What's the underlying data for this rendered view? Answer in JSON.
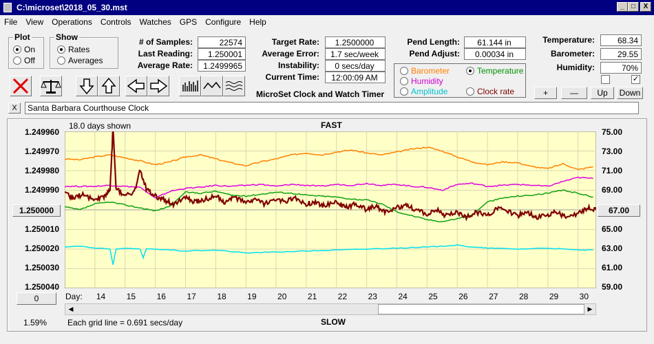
{
  "window": {
    "title": "C:\\microset\\2018_05_30.mst",
    "minimize": "_",
    "maximize": "□",
    "close": "X"
  },
  "menu": [
    "File",
    "View",
    "Operations",
    "Controls",
    "Watches",
    "GPS",
    "Configure",
    "Help"
  ],
  "plot_group": {
    "title": "Plot",
    "on_label": "On",
    "off_label": "Off",
    "selected": "On"
  },
  "show_group": {
    "title": "Show",
    "rates_label": "Rates",
    "averages_label": "Averages",
    "selected": "Rates"
  },
  "stats": {
    "samples_label": "# of Samples:",
    "samples": "22574",
    "last_reading_label": "Last Reading:",
    "last_reading": "1.250001",
    "average_rate_label": "Average Rate:",
    "average_rate": "1.2499965",
    "target_rate_label": "Target Rate:",
    "target_rate": "1.2500000",
    "average_error_label": "Average Error:",
    "average_error": "1.7 sec/week",
    "instability_label": "Instability:",
    "instability": "0 secs/day",
    "current_time_label": "Current Time:",
    "current_time": "12:00:09 AM",
    "pend_length_label": "Pend Length:",
    "pend_length": "61.144 in",
    "pend_adjust_label": "Pend Adjust:",
    "pend_adjust": "0.00034 in",
    "temperature_label": "Temperature:",
    "temperature": "68.34",
    "barometer_label": "Barometer:",
    "barometer": "29.55",
    "humidity_label": "Humidity:",
    "humidity": "70%"
  },
  "app_label": "MicroSet Clock and Watch Timer",
  "sensor_select": {
    "barometer": "Barometer",
    "temperature": "Temperature",
    "humidity": "Humidity",
    "amplitude": "Amplitude",
    "clock_rate": "Clock rate",
    "selected": "Temperature",
    "colors": {
      "barometer": "#ff8000",
      "temperature": "#009000",
      "humidity": "#d000d0",
      "amplitude": "#00d0d0",
      "clock_rate": "#800000"
    }
  },
  "scale_buttons": {
    "plus": "+",
    "minus": "—",
    "up": "Up",
    "down": "Down"
  },
  "checkboxes": [
    {
      "checked": false,
      "mark": ""
    },
    {
      "checked": true,
      "mark": "✓"
    }
  ],
  "clock_name": "Santa Barbara Courthouse Clock",
  "clear_button": "X",
  "chart_data": {
    "type": "line",
    "title": "FAST",
    "bottom_label": "SLOW",
    "days_shown": "18.0 days shown",
    "grid_note": "Each grid line = 0.691 secs/day",
    "percent": "1.59%",
    "x_axis_label": "Day:",
    "x_ticks": [
      "14",
      "15",
      "16",
      "17",
      "18",
      "19",
      "20",
      "21",
      "22",
      "23",
      "24",
      "25",
      "26",
      "27",
      "28",
      "29",
      "30"
    ],
    "xlim": [
      13.0,
      30.6
    ],
    "left_ticks": [
      "1.249960",
      "1.249970",
      "1.249980",
      "1.249990",
      "1.250000",
      "1.250010",
      "1.250020",
      "1.250030",
      "1.250040"
    ],
    "left_ylim": [
      1.24996,
      1.25004
    ],
    "right_ticks": [
      "75.00",
      "73.00",
      "71.00",
      "69.00",
      "67.00",
      "65.00",
      "63.00",
      "61.00",
      "59.00"
    ],
    "right_ylim": [
      59,
      75
    ],
    "left_button": "1.250000",
    "right_button": "67.00",
    "left_bottom_button": "0",
    "background": "#ffffc8",
    "series": [
      {
        "name": "Barometer",
        "color": "#ff8000",
        "axis": "right",
        "x": [
          13.0,
          13.5,
          14.0,
          14.5,
          15.0,
          15.5,
          16.0,
          16.5,
          17.0,
          17.5,
          18.0,
          18.5,
          19.0,
          19.5,
          20.0,
          20.5,
          21.0,
          21.5,
          22.0,
          22.5,
          23.0,
          23.5,
          24.0,
          24.5,
          25.0,
          25.5,
          26.0,
          26.5,
          27.0,
          27.5,
          28.0,
          28.5,
          29.0,
          29.5,
          30.0,
          30.5
        ],
        "y": [
          72.2,
          72.1,
          72.4,
          72.6,
          72.3,
          72.0,
          71.6,
          71.9,
          72.4,
          72.6,
          72.2,
          71.8,
          71.5,
          71.9,
          72.2,
          72.6,
          72.8,
          72.6,
          72.9,
          73.1,
          72.8,
          72.6,
          72.9,
          73.2,
          73.4,
          73.0,
          72.4,
          71.9,
          71.6,
          71.9,
          71.8,
          71.4,
          71.2,
          71.7,
          71.1,
          71.4
        ]
      },
      {
        "name": "Humidity",
        "color": "#e000e0",
        "axis": "right",
        "x": [
          13.0,
          13.5,
          14.0,
          14.5,
          15.0,
          15.5,
          16.0,
          16.5,
          17.0,
          17.5,
          18.0,
          18.5,
          19.0,
          19.5,
          20.0,
          20.5,
          21.0,
          21.5,
          22.0,
          22.5,
          23.0,
          23.5,
          24.0,
          24.5,
          25.0,
          25.5,
          26.0,
          26.5,
          27.0,
          27.5,
          28.0,
          28.5,
          29.0,
          29.5,
          30.0,
          30.5
        ],
        "y": [
          69.4,
          69.4,
          69.4,
          69.5,
          69.4,
          69.3,
          68.2,
          68.9,
          69.2,
          69.3,
          69.5,
          69.4,
          69.5,
          69.6,
          69.4,
          69.6,
          69.5,
          69.4,
          69.6,
          69.5,
          69.7,
          69.5,
          69.6,
          69.4,
          69.3,
          69.0,
          69.6,
          69.7,
          69.4,
          69.5,
          69.6,
          69.5,
          69.4,
          69.9,
          70.3,
          70.2
        ]
      },
      {
        "name": "Temperature",
        "color": "#10a010",
        "axis": "right",
        "x": [
          13.0,
          13.5,
          14.0,
          14.5,
          15.0,
          15.5,
          16.0,
          16.5,
          17.0,
          17.5,
          18.0,
          18.5,
          19.0,
          19.5,
          20.0,
          20.5,
          21.0,
          21.5,
          22.0,
          22.5,
          23.0,
          23.5,
          24.0,
          24.5,
          25.0,
          25.5,
          26.0,
          26.5,
          27.0,
          27.5,
          28.0,
          28.5,
          29.0,
          29.5,
          30.0,
          30.5
        ],
        "y": [
          67.3,
          67.0,
          67.6,
          67.8,
          67.5,
          67.2,
          66.9,
          67.4,
          68.8,
          68.7,
          68.9,
          68.5,
          68.4,
          68.6,
          68.8,
          68.7,
          68.5,
          68.4,
          68.3,
          68.1,
          68.0,
          67.6,
          66.8,
          66.4,
          66.0,
          65.8,
          66.1,
          66.5,
          67.8,
          68.2,
          68.4,
          68.5,
          68.7,
          69.0,
          68.7,
          68.3
        ]
      },
      {
        "name": "Amplitude",
        "color": "#00e0f0",
        "axis": "right",
        "x": [
          13.0,
          13.5,
          14.0,
          14.5,
          14.6,
          14.7,
          15.0,
          15.5,
          15.6,
          15.7,
          16.0,
          17.0,
          18.0,
          19.0,
          20.0,
          21.0,
          22.0,
          23.0,
          24.0,
          25.0,
          25.5,
          26.0,
          26.5,
          27.0,
          28.0,
          29.0,
          30.0,
          30.5
        ],
        "y": [
          63.2,
          63.3,
          63.1,
          63.0,
          61.4,
          63.0,
          63.1,
          63.0,
          62.1,
          63.0,
          63.0,
          62.8,
          62.9,
          62.6,
          62.7,
          62.8,
          62.9,
          63.0,
          63.1,
          63.2,
          63.3,
          63.4,
          63.2,
          63.1,
          63.0,
          63.1,
          62.9,
          62.9
        ]
      },
      {
        "name": "Clock rate",
        "color": "#800000",
        "axis": "left",
        "x": [
          13.0,
          13.3,
          13.6,
          14.0,
          14.3,
          14.5,
          14.6,
          14.7,
          15.0,
          15.3,
          15.5,
          15.7,
          16.0,
          16.3,
          16.6,
          17.0,
          17.3,
          17.6,
          18.0,
          18.3,
          18.6,
          19.0,
          19.3,
          19.6,
          20.0,
          20.3,
          20.6,
          21.0,
          21.3,
          21.6,
          22.0,
          22.3,
          22.6,
          23.0,
          23.3,
          23.6,
          24.0,
          24.3,
          24.6,
          25.0,
          25.3,
          25.6,
          26.0,
          26.3,
          26.6,
          27.0,
          27.3,
          27.6,
          28.0,
          28.3,
          28.6,
          29.0,
          29.3,
          29.6,
          30.0,
          30.3,
          30.6
        ],
        "y": [
          1.249992,
          1.249994,
          1.249992,
          1.249995,
          1.249993,
          1.24999,
          1.249958,
          1.249989,
          1.249993,
          1.249991,
          1.24998,
          1.249989,
          1.249993,
          1.249995,
          1.249997,
          1.249994,
          1.249996,
          1.249995,
          1.249993,
          1.249996,
          1.249994,
          1.249996,
          1.249995,
          1.249997,
          1.249995,
          1.249996,
          1.249994,
          1.249997,
          1.249996,
          1.249998,
          1.249996,
          1.249999,
          1.249997,
          1.25,
          1.249998,
          1.250001,
          1.249999,
          1.249997,
          1.25,
          1.250002,
          1.25,
          1.250003,
          1.250001,
          1.250004,
          1.250001,
          1.250003,
          1.249999,
          1.25,
          1.250003,
          1.250001,
          1.250004,
          1.250003,
          1.250001,
          1.250004,
          1.250002,
          1.249999,
          1.25
        ]
      }
    ]
  }
}
